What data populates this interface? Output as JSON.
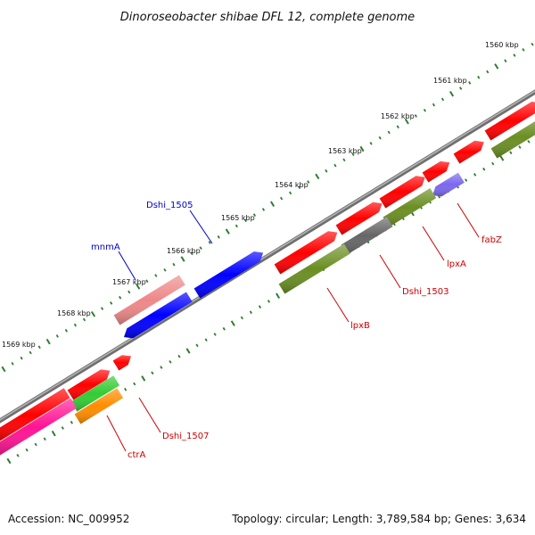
{
  "title": "Dinoroseobacter shibae DFL 12, complete genome",
  "footer": {
    "accession": "Accession: NC_009952",
    "summary": "Topology: circular; Length: 3,789,584 bp; Genes: 3,634"
  },
  "ruler": {
    "labels": [
      "1560 kbp",
      "1561 kbp",
      "1562 kbp",
      "1563 kbp",
      "1564 kbp",
      "1565 kbp",
      "1566 kbp",
      "1567 kbp",
      "1568 kbp",
      "1569 kbp"
    ]
  },
  "colors": {
    "backbone": "#808080",
    "tick": "#2e7d32",
    "forward_label": "#0000cc",
    "reverse_label": "#cc0000",
    "red_feature": "#ff0000",
    "blue_feature": "#0000ff",
    "pink_feature": "#ee8888",
    "olive_feature": "#6b8e23",
    "grey_feature": "#666666",
    "purple_feature": "#7b68ee",
    "magenta_feature": "#ff1493",
    "green_feature": "#33cc33",
    "orange_feature": "#ff8c00"
  },
  "gene_labels": [
    {
      "name": "Dshi_1505",
      "strand": "forward"
    },
    {
      "name": "mnmA",
      "strand": "forward"
    },
    {
      "name": "fabZ",
      "strand": "reverse"
    },
    {
      "name": "lpxA",
      "strand": "reverse"
    },
    {
      "name": "Dshi_1503",
      "strand": "reverse"
    },
    {
      "name": "lpxB",
      "strand": "reverse"
    },
    {
      "name": "Dshi_1507",
      "strand": "reverse"
    },
    {
      "name": "ctrA",
      "strand": "reverse"
    }
  ]
}
